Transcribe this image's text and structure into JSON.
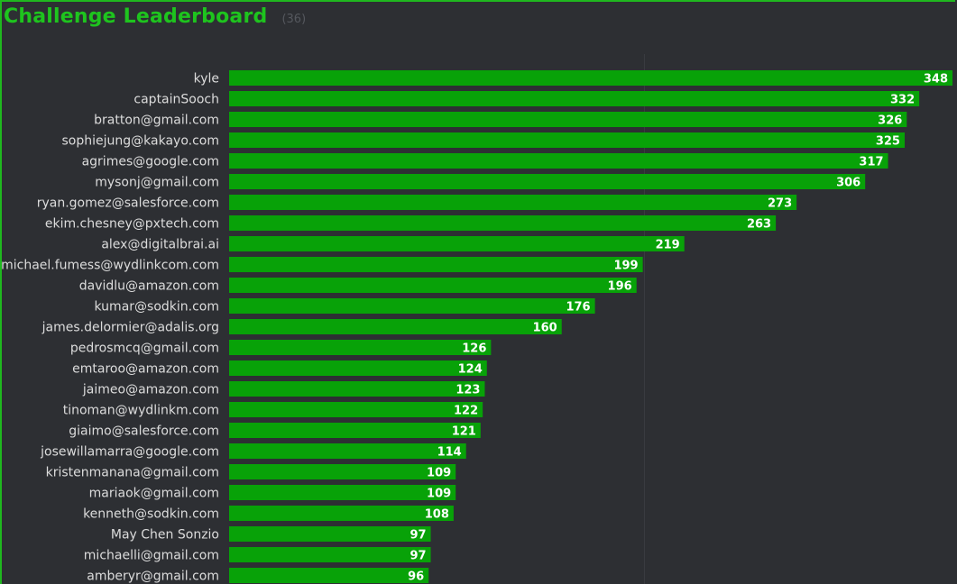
{
  "header": {
    "title": "Challenge Leaderboard",
    "count": "(36)"
  },
  "colors": {
    "background": "#2d2f33",
    "accent": "#1ec41e",
    "bar": "#08a208",
    "label_text": "#dcdcdc",
    "value_text": "#ffffff",
    "redaction": "#13c613"
  },
  "chart_data": {
    "type": "bar",
    "orientation": "horizontal",
    "categories": [
      "kyle",
      "captainSooch",
      "bratton@gmail.com",
      "sophiejung@kakayo.com",
      "agrimes@google.com",
      "mysonj@gmail.com",
      "ryan.gomez@salesforce.com",
      "ekim.chesney@pxtech.com",
      "alex@digitalbrai.ai",
      "michael.fumess@wydlinkcom.com",
      "davidlu@amazon.com",
      "kumar@sodkin.com",
      "james.delormier@adalis.org",
      "pedrosmcq@gmail.com",
      "emtaroo@amazon.com",
      "jaimeo@amazon.com",
      "tinoman@wydlinkm.com",
      "giaimo@salesforce.com",
      "josewillamarra@google.com",
      "kristenmanana@gmail.com",
      "mariaok@gmail.com",
      "kenneth@sodkin.com",
      "May Chen Sonzio",
      "michaelli@gmail.com",
      "amberyr@gmail.com"
    ],
    "values": [
      348,
      332,
      326,
      325,
      317,
      306,
      273,
      263,
      219,
      199,
      196,
      176,
      160,
      126,
      124,
      123,
      122,
      121,
      114,
      109,
      109,
      108,
      97,
      97,
      96
    ],
    "xlim": [
      0,
      348
    ],
    "grid": true,
    "value_labels": true
  }
}
